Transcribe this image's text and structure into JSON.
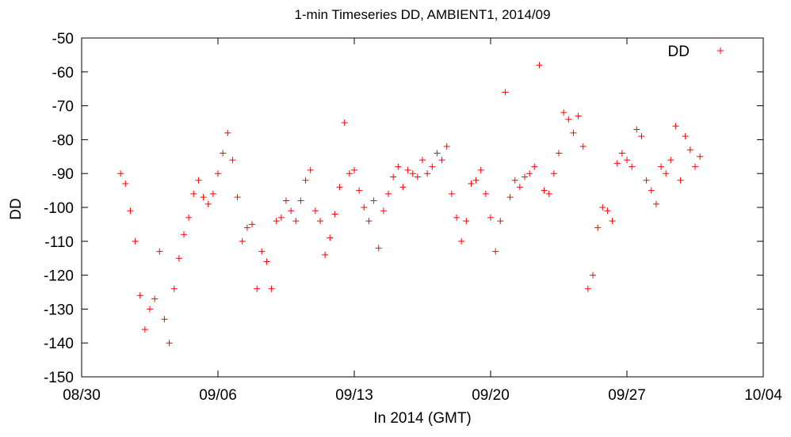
{
  "chart_data": {
    "type": "scatter",
    "title": "1-min Timeseries DD, AMBIENT1, 2014/09",
    "xlabel": "In 2014 (GMT)",
    "ylabel": "DD",
    "xlim": [
      "2014-08-30",
      "2014-10-04"
    ],
    "ylim": [
      -150,
      -50
    ],
    "x_ticks": [
      "2014-08-30",
      "2014-09-06",
      "2014-09-13",
      "2014-09-20",
      "2014-09-27",
      "2014-10-04"
    ],
    "x_tick_labels": [
      "08/30",
      "09/06",
      "09/13",
      "09/20",
      "09/27",
      "10/04"
    ],
    "y_ticks": [
      -50,
      -60,
      -70,
      -80,
      -90,
      -100,
      -110,
      -120,
      -130,
      -140,
      -150
    ],
    "grid": false,
    "legend": "top-right",
    "marker": "plus",
    "series": [
      {
        "name": "DD",
        "color": "#ff0000",
        "points": [
          [
            "2014-09-01 00:00",
            -90
          ],
          [
            "2014-09-01 06:00",
            -93
          ],
          [
            "2014-09-01 12:00",
            -101
          ],
          [
            "2014-09-01 18:00",
            -110
          ],
          [
            "2014-09-02 00:00",
            -126
          ],
          [
            "2014-09-02 06:00",
            -136
          ],
          [
            "2014-09-02 12:00",
            -130
          ],
          [
            "2014-09-02 18:00",
            -127
          ],
          [
            "2014-09-03 00:00",
            -113
          ],
          [
            "2014-09-03 06:00",
            -133
          ],
          [
            "2014-09-03 12:00",
            -140
          ],
          [
            "2014-09-03 18:00",
            -124
          ],
          [
            "2014-09-04 00:00",
            -115
          ],
          [
            "2014-09-04 06:00",
            -108
          ],
          [
            "2014-09-04 12:00",
            -103
          ],
          [
            "2014-09-04 18:00",
            -96
          ],
          [
            "2014-09-05 00:00",
            -92
          ],
          [
            "2014-09-05 06:00",
            -97
          ],
          [
            "2014-09-05 12:00",
            -99
          ],
          [
            "2014-09-05 18:00",
            -96
          ],
          [
            "2014-09-06 00:00",
            -90
          ],
          [
            "2014-09-06 06:00",
            -84
          ],
          [
            "2014-09-06 12:00",
            -78
          ],
          [
            "2014-09-06 18:00",
            -86
          ],
          [
            "2014-09-07 00:00",
            -97
          ],
          [
            "2014-09-07 06:00",
            -110
          ],
          [
            "2014-09-07 12:00",
            -106
          ],
          [
            "2014-09-07 18:00",
            -105
          ],
          [
            "2014-09-08 00:00",
            -124
          ],
          [
            "2014-09-08 06:00",
            -113
          ],
          [
            "2014-09-08 12:00",
            -116
          ],
          [
            "2014-09-08 18:00",
            -124
          ],
          [
            "2014-09-09 00:00",
            -104
          ],
          [
            "2014-09-09 06:00",
            -103
          ],
          [
            "2014-09-09 12:00",
            -98
          ],
          [
            "2014-09-09 18:00",
            -101
          ],
          [
            "2014-09-10 00:00",
            -104
          ],
          [
            "2014-09-10 06:00",
            -98
          ],
          [
            "2014-09-10 12:00",
            -92
          ],
          [
            "2014-09-10 18:00",
            -89
          ],
          [
            "2014-09-11 00:00",
            -101
          ],
          [
            "2014-09-11 06:00",
            -104
          ],
          [
            "2014-09-11 12:00",
            -114
          ],
          [
            "2014-09-11 18:00",
            -109
          ],
          [
            "2014-09-12 00:00",
            -102
          ],
          [
            "2014-09-12 06:00",
            -94
          ],
          [
            "2014-09-12 12:00",
            -75
          ],
          [
            "2014-09-12 18:00",
            -90
          ],
          [
            "2014-09-13 00:00",
            -89
          ],
          [
            "2014-09-13 06:00",
            -95
          ],
          [
            "2014-09-13 12:00",
            -100
          ],
          [
            "2014-09-13 18:00",
            -104
          ],
          [
            "2014-09-14 00:00",
            -98
          ],
          [
            "2014-09-14 06:00",
            -112
          ],
          [
            "2014-09-14 12:00",
            -101
          ],
          [
            "2014-09-14 18:00",
            -96
          ],
          [
            "2014-09-15 00:00",
            -91
          ],
          [
            "2014-09-15 06:00",
            -88
          ],
          [
            "2014-09-15 12:00",
            -94
          ],
          [
            "2014-09-15 18:00",
            -89
          ],
          [
            "2014-09-16 00:00",
            -90
          ],
          [
            "2014-09-16 06:00",
            -91
          ],
          [
            "2014-09-16 12:00",
            -86
          ],
          [
            "2014-09-16 18:00",
            -90
          ],
          [
            "2014-09-17 00:00",
            -88
          ],
          [
            "2014-09-17 06:00",
            -84
          ],
          [
            "2014-09-17 12:00",
            -86
          ],
          [
            "2014-09-17 18:00",
            -82
          ],
          [
            "2014-09-18 00:00",
            -96
          ],
          [
            "2014-09-18 06:00",
            -103
          ],
          [
            "2014-09-18 12:00",
            -110
          ],
          [
            "2014-09-18 18:00",
            -104
          ],
          [
            "2014-09-19 00:00",
            -93
          ],
          [
            "2014-09-19 06:00",
            -92
          ],
          [
            "2014-09-19 12:00",
            -89
          ],
          [
            "2014-09-19 18:00",
            -96
          ],
          [
            "2014-09-20 00:00",
            -103
          ],
          [
            "2014-09-20 06:00",
            -113
          ],
          [
            "2014-09-20 12:00",
            -104
          ],
          [
            "2014-09-20 18:00",
            -66
          ],
          [
            "2014-09-21 00:00",
            -97
          ],
          [
            "2014-09-21 06:00",
            -92
          ],
          [
            "2014-09-21 12:00",
            -94
          ],
          [
            "2014-09-21 18:00",
            -91
          ],
          [
            "2014-09-22 00:00",
            -90
          ],
          [
            "2014-09-22 06:00",
            -88
          ],
          [
            "2014-09-22 12:00",
            -58
          ],
          [
            "2014-09-22 18:00",
            -95
          ],
          [
            "2014-09-23 00:00",
            -96
          ],
          [
            "2014-09-23 06:00",
            -90
          ],
          [
            "2014-09-23 12:00",
            -84
          ],
          [
            "2014-09-23 18:00",
            -72
          ],
          [
            "2014-09-24 00:00",
            -74
          ],
          [
            "2014-09-24 06:00",
            -78
          ],
          [
            "2014-09-24 12:00",
            -73
          ],
          [
            "2014-09-24 18:00",
            -82
          ],
          [
            "2014-09-25 00:00",
            -124
          ],
          [
            "2014-09-25 06:00",
            -120
          ],
          [
            "2014-09-25 12:00",
            -106
          ],
          [
            "2014-09-25 18:00",
            -100
          ],
          [
            "2014-09-26 00:00",
            -101
          ],
          [
            "2014-09-26 06:00",
            -104
          ],
          [
            "2014-09-26 12:00",
            -87
          ],
          [
            "2014-09-26 18:00",
            -84
          ],
          [
            "2014-09-27 00:00",
            -86
          ],
          [
            "2014-09-27 06:00",
            -88
          ],
          [
            "2014-09-27 12:00",
            -77
          ],
          [
            "2014-09-27 18:00",
            -79
          ],
          [
            "2014-09-28 00:00",
            -92
          ],
          [
            "2014-09-28 06:00",
            -95
          ],
          [
            "2014-09-28 12:00",
            -99
          ],
          [
            "2014-09-28 18:00",
            -88
          ],
          [
            "2014-09-29 00:00",
            -90
          ],
          [
            "2014-09-29 06:00",
            -86
          ],
          [
            "2014-09-29 12:00",
            -76
          ],
          [
            "2014-09-29 18:00",
            -92
          ],
          [
            "2014-09-30 00:00",
            -79
          ],
          [
            "2014-09-30 06:00",
            -83
          ],
          [
            "2014-09-30 12:00",
            -88
          ],
          [
            "2014-09-30 18:00",
            -85
          ]
        ]
      }
    ]
  }
}
